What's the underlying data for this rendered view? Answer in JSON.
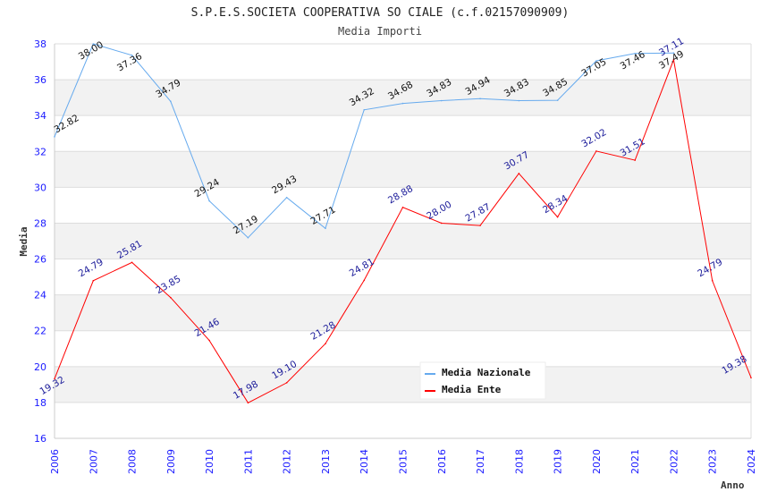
{
  "chart_data": {
    "type": "line",
    "title": "S.P.E.S.SOCIETA COOPERATIVA SO CIALE (c.f.02157090909)",
    "subtitle": "Media Importi",
    "xlabel": "Anno",
    "ylabel": "Media",
    "ylim": [
      16,
      38
    ],
    "yticks": [
      16,
      18,
      20,
      22,
      24,
      26,
      28,
      30,
      32,
      34,
      36,
      38
    ],
    "x": [
      2006,
      2007,
      2008,
      2009,
      2010,
      2011,
      2012,
      2013,
      2014,
      2015,
      2016,
      2017,
      2018,
      2019,
      2020,
      2021,
      2022,
      2023,
      2024
    ],
    "legend_position": "top-right",
    "grid": true,
    "series": [
      {
        "name": "Media Nazionale",
        "color": "#66aaee",
        "label_color": "#111111",
        "values": [
          32.82,
          38.0,
          37.36,
          34.79,
          29.24,
          27.19,
          29.43,
          27.71,
          34.32,
          34.68,
          34.83,
          34.94,
          34.83,
          34.85,
          37.05,
          37.46,
          37.49,
          null,
          null
        ]
      },
      {
        "name": "Media Ente",
        "color": "#ff0000",
        "label_color": "#1a1a99",
        "values": [
          19.32,
          24.79,
          25.81,
          23.85,
          21.46,
          17.98,
          19.1,
          21.28,
          24.81,
          28.88,
          28.0,
          27.87,
          30.77,
          28.34,
          32.02,
          31.51,
          37.11,
          24.79,
          19.38
        ]
      }
    ]
  }
}
